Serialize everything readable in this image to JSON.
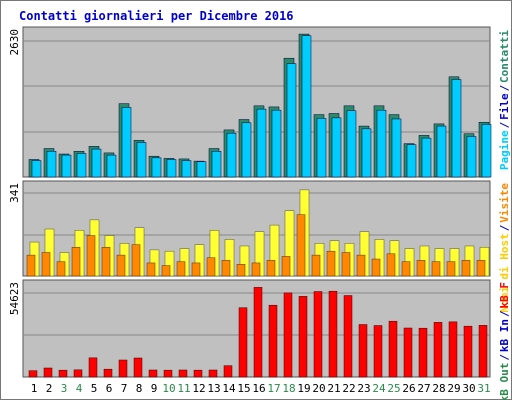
{
  "title": "Contatti giornalieri per Dicembre 2016",
  "colors": {
    "background": "#c0c0c0",
    "pages_dark": "#2a8a6a",
    "files_cyan": "#00ccff",
    "hits_yellow": "#ffff33",
    "hosts_orange": "#ff8800",
    "kb_red": "#ff0000",
    "title_blue": "#0000cc",
    "weekend_green": "#2a8a4a"
  },
  "panel_labels": {
    "top_max": "2630",
    "mid_max": "341",
    "bot_max": "54623"
  },
  "right_legend": {
    "top": [
      {
        "text": "Contatti",
        "color": "#2a8a6a"
      },
      {
        "text": "/",
        "color": "#0000cc"
      },
      {
        "text": "File",
        "color": "#0000cc"
      },
      {
        "text": "/",
        "color": "#0000cc"
      },
      {
        "text": "Pagine",
        "color": "#00ccff"
      }
    ],
    "mid": [
      {
        "text": "Visite",
        "color": "#ff8800"
      },
      {
        "text": "/",
        "color": "#0000cc"
      },
      {
        "text": "Nomi di Host",
        "color": "#ffcc00"
      }
    ],
    "bot": [
      {
        "text": "kB F",
        "color": "#ff0000"
      },
      {
        "text": "/",
        "color": "#0000cc"
      },
      {
        "text": "kB In",
        "color": "#0000cc"
      },
      {
        "text": "/",
        "color": "#0000cc"
      },
      {
        "text": "kB Out",
        "color": "#2a8a4a"
      }
    ]
  },
  "chart_data": [
    {
      "type": "bar",
      "name": "Contatti / File / Pagine",
      "categories": [
        "1",
        "2",
        "3",
        "4",
        "5",
        "6",
        "7",
        "8",
        "9",
        "10",
        "11",
        "12",
        "13",
        "14",
        "15",
        "16",
        "17",
        "18",
        "19",
        "20",
        "21",
        "22",
        "23",
        "24",
        "25",
        "26",
        "27",
        "28",
        "29",
        "30",
        "31"
      ],
      "weekend_days": [
        "3",
        "4",
        "10",
        "11",
        "17",
        "18",
        "24",
        "25",
        "31"
      ],
      "ylim": [
        0,
        2630
      ],
      "series": [
        {
          "name": "Contatti",
          "values": [
            320,
            520,
            420,
            470,
            560,
            440,
            1340,
            670,
            380,
            340,
            330,
            290,
            520,
            860,
            1050,
            1300,
            1280,
            2170,
            2610,
            1140,
            1160,
            1300,
            930,
            1300,
            1140,
            610,
            760,
            970,
            1830,
            790,
            1000
          ]
        },
        {
          "name": "File",
          "values": [
            300,
            470,
            400,
            430,
            510,
            400,
            1270,
            630,
            350,
            320,
            300,
            280,
            470,
            800,
            990,
            1240,
            1220,
            2070,
            2580,
            1070,
            1080,
            1210,
            880,
            1220,
            1060,
            590,
            710,
            930,
            1780,
            740,
            960
          ]
        }
      ]
    },
    {
      "type": "bar",
      "name": "Visite / Nomi di Host",
      "categories": [
        "1",
        "2",
        "3",
        "4",
        "5",
        "6",
        "7",
        "8",
        "9",
        "10",
        "11",
        "12",
        "13",
        "14",
        "15",
        "16",
        "17",
        "18",
        "19",
        "20",
        "21",
        "22",
        "23",
        "24",
        "25",
        "26",
        "27",
        "28",
        "29",
        "30",
        "31"
      ],
      "ylim": [
        0,
        341
      ],
      "series": [
        {
          "name": "Visite",
          "values": [
            130,
            180,
            90,
            175,
            215,
            155,
            125,
            185,
            100,
            95,
            105,
            120,
            175,
            140,
            115,
            170,
            195,
            250,
            330,
            125,
            135,
            125,
            170,
            140,
            135,
            105,
            115,
            105,
            105,
            115,
            110
          ]
        },
        {
          "name": "Nomi di Host",
          "values": [
            80,
            90,
            55,
            110,
            155,
            110,
            80,
            120,
            50,
            40,
            55,
            50,
            70,
            60,
            45,
            50,
            60,
            75,
            235,
            80,
            95,
            90,
            80,
            65,
            85,
            55,
            60,
            55,
            55,
            60,
            60
          ]
        }
      ]
    },
    {
      "type": "bar",
      "name": "kB",
      "categories": [
        "1",
        "2",
        "3",
        "4",
        "5",
        "6",
        "7",
        "8",
        "9",
        "10",
        "11",
        "12",
        "13",
        "14",
        "15",
        "16",
        "17",
        "18",
        "19",
        "20",
        "21",
        "22",
        "23",
        "24",
        "25",
        "26",
        "27",
        "28",
        "29",
        "30",
        "31"
      ],
      "ylim": [
        0,
        54623
      ],
      "series": [
        {
          "name": "kB F",
          "values": [
            3800,
            5400,
            4100,
            4300,
            11500,
            4700,
            10200,
            11400,
            4200,
            4100,
            4200,
            4100,
            4200,
            6800,
            41600,
            53800,
            43100,
            50500,
            48400,
            51300,
            51500,
            48900,
            31500,
            30900,
            33500,
            29400,
            29300,
            32800,
            33100,
            30500,
            31000
          ]
        }
      ]
    }
  ]
}
